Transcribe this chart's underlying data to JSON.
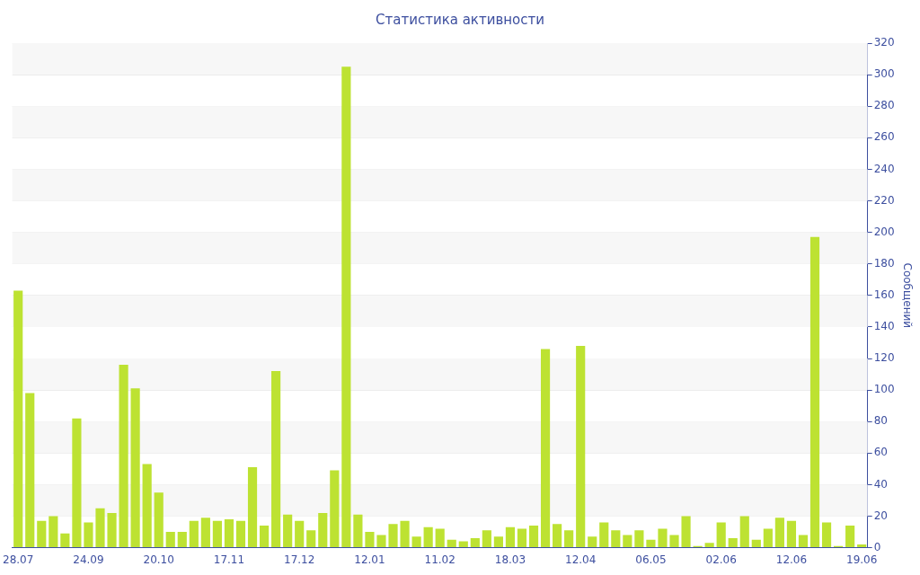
{
  "chart_data": {
    "type": "bar",
    "title": "Статистика активности",
    "ylabel": "Сообщений",
    "categories": [
      "28.07",
      null,
      null,
      null,
      null,
      null,
      "24.09",
      null,
      null,
      null,
      null,
      null,
      "20.10",
      null,
      null,
      null,
      null,
      null,
      "17.11",
      null,
      null,
      null,
      null,
      null,
      "17.12",
      null,
      null,
      null,
      null,
      null,
      "12.01",
      null,
      null,
      null,
      null,
      null,
      "11.02",
      null,
      null,
      null,
      null,
      null,
      "18.03",
      null,
      null,
      null,
      null,
      null,
      "12.04",
      null,
      null,
      null,
      null,
      null,
      "06.05",
      null,
      null,
      null,
      null,
      null,
      "02.06",
      null,
      null,
      null,
      null,
      null,
      "12.06",
      null,
      null,
      null,
      null,
      null,
      "19.06"
    ],
    "values": [
      163,
      98,
      17,
      20,
      9,
      82,
      16,
      25,
      22,
      116,
      101,
      53,
      35,
      10,
      10,
      17,
      19,
      17,
      18,
      17,
      51,
      14,
      112,
      21,
      17,
      11,
      22,
      49,
      305,
      21,
      10,
      8,
      15,
      17,
      7,
      13,
      12,
      5,
      4,
      6,
      11,
      7,
      13,
      12,
      14,
      126,
      15,
      11,
      128,
      7,
      16,
      11,
      8,
      11,
      5,
      12,
      8,
      20,
      1,
      3,
      16,
      6,
      20,
      5,
      12,
      19,
      17,
      8,
      197,
      16,
      1,
      14,
      2
    ],
    "color": "#bde232",
    "ylim": [
      0,
      320
    ],
    "yticks": [
      0,
      20,
      40,
      60,
      80,
      100,
      120,
      140,
      160,
      180,
      200,
      220,
      240,
      260,
      280,
      300,
      320
    ],
    "grid": "y"
  }
}
